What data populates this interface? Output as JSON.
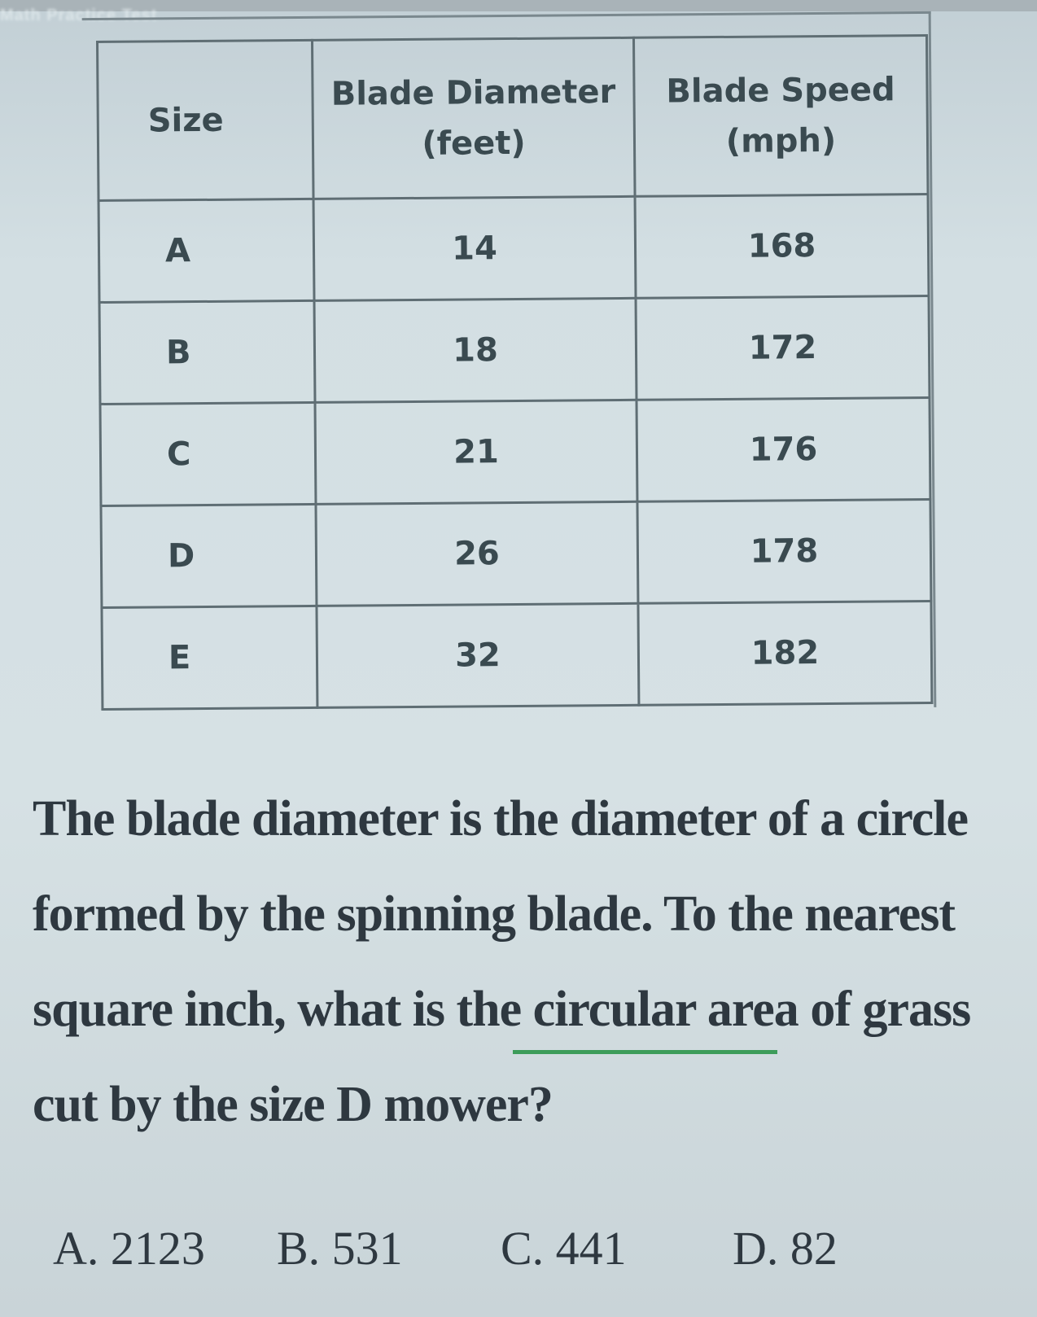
{
  "header": {
    "text": "Math Practice Test"
  },
  "table": {
    "headers": [
      "Size",
      "Blade Diameter (feet)",
      "Blade Speed (mph)"
    ],
    "rows": [
      [
        "A",
        "14",
        "168"
      ],
      [
        "B",
        "18",
        "172"
      ],
      [
        "C",
        "21",
        "176"
      ],
      [
        "D",
        "26",
        "178"
      ],
      [
        "E",
        "32",
        "182"
      ]
    ]
  },
  "question": {
    "line1": "The blade diameter is the diameter of a circle",
    "line2": "formed by the spinning blade.  To the nearest",
    "line3a": "square inch, what is the ",
    "line3_underlined": "circular area",
    "line3b": " of grass",
    "line4": "cut by the size D mower?"
  },
  "answers": [
    "A. 2123",
    "B. 531",
    "C. 441",
    "D. 82"
  ],
  "colors": {
    "underline": "#3d9c5a"
  }
}
